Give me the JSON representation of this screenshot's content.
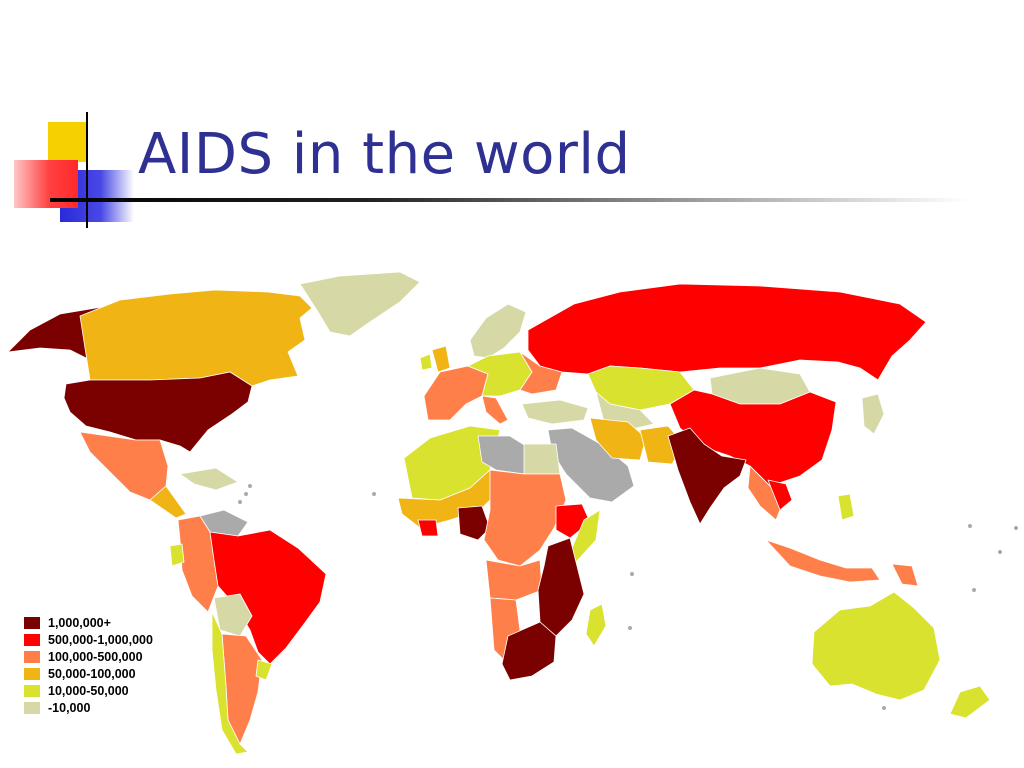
{
  "slide": {
    "title": "AIDS in the world"
  },
  "colors": {
    "title": "#2e3192",
    "ocean": "#ffffff",
    "no_data": "#aaaaaa",
    "deco_yellow": "#f6d000",
    "deco_red": "#ff3a3a",
    "deco_blue": "#2a2ad8"
  },
  "legend": {
    "items": [
      {
        "label": "1,000,000+",
        "color": "#7b0000"
      },
      {
        "label": "500,000-1,000,000",
        "color": "#ff0000"
      },
      {
        "label": "100,000-500,000",
        "color": "#ff7f4a"
      },
      {
        "label": "50,000-100,000",
        "color": "#f0b514"
      },
      {
        "label": "10,000-50,000",
        "color": "#d9e22e"
      },
      {
        "label": "-10,000",
        "color": "#d6d9a6"
      }
    ]
  },
  "map_regions": [
    {
      "name": "alaska",
      "category": "1,000,000+"
    },
    {
      "name": "usa",
      "category": "1,000,000+"
    },
    {
      "name": "canada",
      "category": "50,000-100,000"
    },
    {
      "name": "greenland",
      "category": "-10,000"
    },
    {
      "name": "mexico",
      "category": "100,000-500,000"
    },
    {
      "name": "brazil",
      "category": "500,000-1,000,000"
    },
    {
      "name": "russia",
      "category": "500,000-1,000,000"
    },
    {
      "name": "china",
      "category": "500,000-1,000,000"
    },
    {
      "name": "india",
      "category": "1,000,000+"
    },
    {
      "name": "australia",
      "category": "10,000-50,000"
    },
    {
      "name": "nigeria",
      "category": "1,000,000+"
    },
    {
      "name": "southern-africa",
      "category": "1,000,000+"
    },
    {
      "name": "north-africa",
      "category": "10,000-50,000"
    }
  ]
}
